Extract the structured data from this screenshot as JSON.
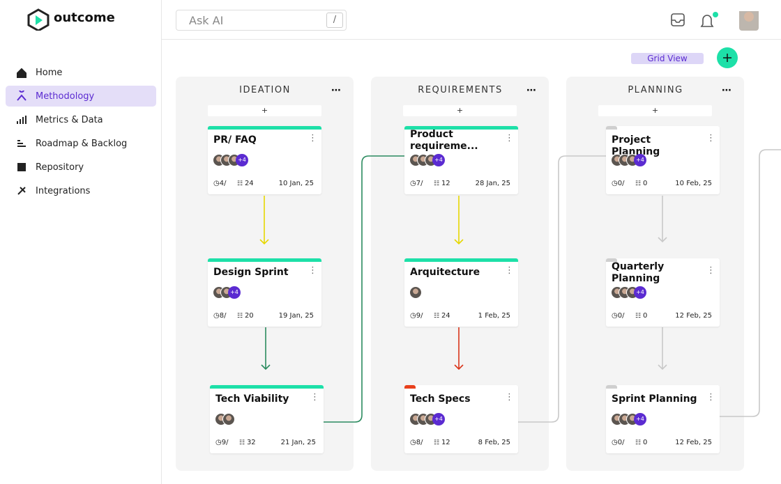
{
  "logo": "outcome",
  "nav": [
    "Home",
    "Methodology",
    "Metrics & Data",
    "Roadmap & Backlog",
    "Repository",
    "Integrations"
  ],
  "search": {
    "placeholder": "Ask AI",
    "shortcut": "/"
  },
  "view_toggle": "Grid View",
  "columns": [
    {
      "title": "IDEATION",
      "add": "+",
      "cards": [
        {
          "title": "PR/ FAQ",
          "more": "+4",
          "tasks": "4/",
          "comments": "24",
          "date": "10 Jan, 25",
          "accent": "#1de0a8"
        },
        {
          "title": "Design Sprint",
          "more": "+4",
          "tasks": "8/",
          "comments": "20",
          "date": "19 Jan, 25",
          "accent": "#1de0a8"
        },
        {
          "title": "Tech Viability",
          "tasks": "9/",
          "comments": "32",
          "date": "21 Jan, 25",
          "accent": "#1de0a8"
        }
      ]
    },
    {
      "title": "REQUIREMENTS",
      "add": "+",
      "cards": [
        {
          "title": "Product requireme...",
          "more": "+4",
          "tasks": "7/",
          "comments": "12",
          "date": "28 Jan, 25",
          "accent": "#1de0a8"
        },
        {
          "title": "Arquitecture",
          "tasks": "9/",
          "comments": "24",
          "date": "1 Feb, 25",
          "accent": "#1de0a8"
        },
        {
          "title": "Tech Specs",
          "more": "+4",
          "tasks": "8/",
          "comments": "12",
          "date": "8 Feb, 25",
          "accent": "#e8401c"
        }
      ]
    },
    {
      "title": "PLANNING",
      "add": "+",
      "cards": [
        {
          "title": "Project Planning",
          "more": "+4",
          "tasks": "0/",
          "comments": "0",
          "date": "10 Feb, 25",
          "accent": "#cfcfcf"
        },
        {
          "title": "Quarterly Planning",
          "more": "+4",
          "tasks": "0/",
          "comments": "0",
          "date": "12 Feb, 25",
          "accent": "#cfcfcf"
        },
        {
          "title": "Sprint Planning",
          "more": "+4",
          "tasks": "0/",
          "comments": "0",
          "date": "12 Feb, 25",
          "accent": "#cfcfcf"
        }
      ]
    }
  ]
}
